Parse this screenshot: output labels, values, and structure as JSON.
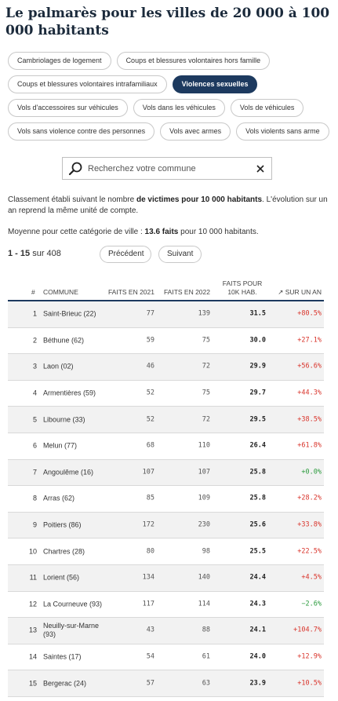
{
  "title": "Le palmarès pour les villes de 20 000 à 100 000 habitants",
  "categories": [
    [
      "Cambriolages de logement",
      "Coups et blessures volontaires hors famille"
    ],
    [
      "Coups et blessures volontaires intrafamiliaux",
      "Violences sexuelles"
    ],
    [
      "Vols d'accessoires sur véhicules",
      "Vols dans les véhicules",
      "Vols de véhicules"
    ],
    [
      "Vols sans violence contre des personnes",
      "Vols avec armes",
      "Vols violents sans arme"
    ]
  ],
  "active_category": "Violences sexuelles",
  "search": {
    "placeholder": "Recherchez votre commune",
    "value": ""
  },
  "description": {
    "pre": "Classement établi suivant le nombre ",
    "bold": "de victimes pour 10 000 habitants",
    "post": ". L'évolution sur un an reprend la même unité de compte."
  },
  "average": {
    "pre": "Moyenne pour cette catégorie de ville : ",
    "bold": "13.6 faits",
    "post": " pour 10 000 habitants."
  },
  "pagination": {
    "range": "1 - 15",
    "sep": " sur ",
    "total": "408",
    "prev_label": "Précédent",
    "next_label": "Suivant"
  },
  "table": {
    "headers": {
      "num": "#",
      "commune": "COMMUNE",
      "f2021": "FAITS EN 2021",
      "f2022": "FAITS EN 2022",
      "k10": "FAITS POUR\n10K HAB.",
      "evo": "↗ SUR UN AN"
    },
    "rows": [
      {
        "rank": "1",
        "commune": "Saint-Brieuc (22)",
        "f2021": "77",
        "f2022": "139",
        "k10": "31.5",
        "evo": "+80.5%",
        "dir": "up"
      },
      {
        "rank": "2",
        "commune": "Béthune (62)",
        "f2021": "59",
        "f2022": "75",
        "k10": "30.0",
        "evo": "+27.1%",
        "dir": "up"
      },
      {
        "rank": "3",
        "commune": "Laon (02)",
        "f2021": "46",
        "f2022": "72",
        "k10": "29.9",
        "evo": "+56.6%",
        "dir": "up"
      },
      {
        "rank": "4",
        "commune": "Armentières (59)",
        "f2021": "52",
        "f2022": "75",
        "k10": "29.7",
        "evo": "+44.3%",
        "dir": "up"
      },
      {
        "rank": "5",
        "commune": "Libourne (33)",
        "f2021": "52",
        "f2022": "72",
        "k10": "29.5",
        "evo": "+38.5%",
        "dir": "up"
      },
      {
        "rank": "6",
        "commune": "Melun (77)",
        "f2021": "68",
        "f2022": "110",
        "k10": "26.4",
        "evo": "+61.8%",
        "dir": "up"
      },
      {
        "rank": "7",
        "commune": "Angoulême (16)",
        "f2021": "107",
        "f2022": "107",
        "k10": "25.8",
        "evo": "+0.0%",
        "dir": "down"
      },
      {
        "rank": "8",
        "commune": "Arras (62)",
        "f2021": "85",
        "f2022": "109",
        "k10": "25.8",
        "evo": "+28.2%",
        "dir": "up"
      },
      {
        "rank": "9",
        "commune": "Poitiers (86)",
        "f2021": "172",
        "f2022": "230",
        "k10": "25.6",
        "evo": "+33.8%",
        "dir": "up"
      },
      {
        "rank": "10",
        "commune": "Chartres (28)",
        "f2021": "80",
        "f2022": "98",
        "k10": "25.5",
        "evo": "+22.5%",
        "dir": "up"
      },
      {
        "rank": "11",
        "commune": "Lorient (56)",
        "f2021": "134",
        "f2022": "140",
        "k10": "24.4",
        "evo": "+4.5%",
        "dir": "up"
      },
      {
        "rank": "12",
        "commune": "La Courneuve (93)",
        "f2021": "117",
        "f2022": "114",
        "k10": "24.3",
        "evo": "−2.6%",
        "dir": "down"
      },
      {
        "rank": "13",
        "commune": "Neuilly-sur-Marne (93)",
        "f2021": "43",
        "f2022": "88",
        "k10": "24.1",
        "evo": "+104.7%",
        "dir": "up"
      },
      {
        "rank": "14",
        "commune": "Saintes (17)",
        "f2021": "54",
        "f2022": "61",
        "k10": "24.0",
        "evo": "+12.9%",
        "dir": "up"
      },
      {
        "rank": "15",
        "commune": "Bergerac (24)",
        "f2021": "57",
        "f2022": "63",
        "k10": "23.9",
        "evo": "+10.5%",
        "dir": "up"
      }
    ]
  },
  "colors": {
    "accent": "#1d3a5f",
    "increase": "#d9342b",
    "decrease": "#2a9a3c"
  },
  "icons": {
    "search": "search-icon",
    "clear": "close-icon"
  }
}
